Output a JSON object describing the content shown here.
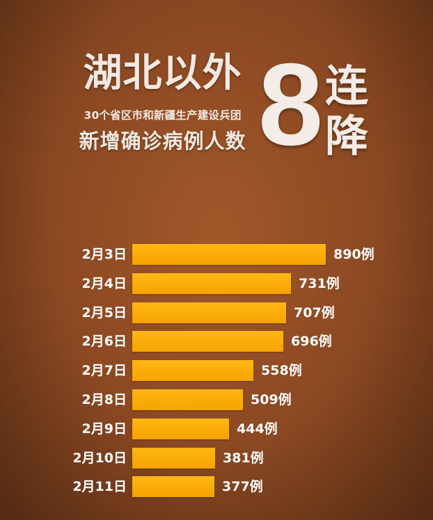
{
  "header": {
    "title": "湖北以外",
    "subtitle": "30个省区市和新疆生产建设兵团",
    "subtitle2": "新增确诊病例人数",
    "big_number": "8",
    "streak_chars": [
      "连",
      "降"
    ]
  },
  "chart_data": {
    "type": "bar",
    "orientation": "horizontal",
    "categories": [
      "2月3日",
      "2月4日",
      "2月5日",
      "2月6日",
      "2月7日",
      "2月8日",
      "2月9日",
      "2月10日",
      "2月11日"
    ],
    "values": [
      890,
      731,
      707,
      696,
      558,
      509,
      444,
      381,
      377
    ],
    "value_labels": [
      "890例",
      "731例",
      "707例",
      "696例",
      "558例",
      "509例",
      "444例",
      "381例",
      "377例"
    ],
    "bar_color": "#f9a90a",
    "title": "",
    "xlabel": "",
    "ylabel": "",
    "grid": false,
    "legend": "none"
  }
}
